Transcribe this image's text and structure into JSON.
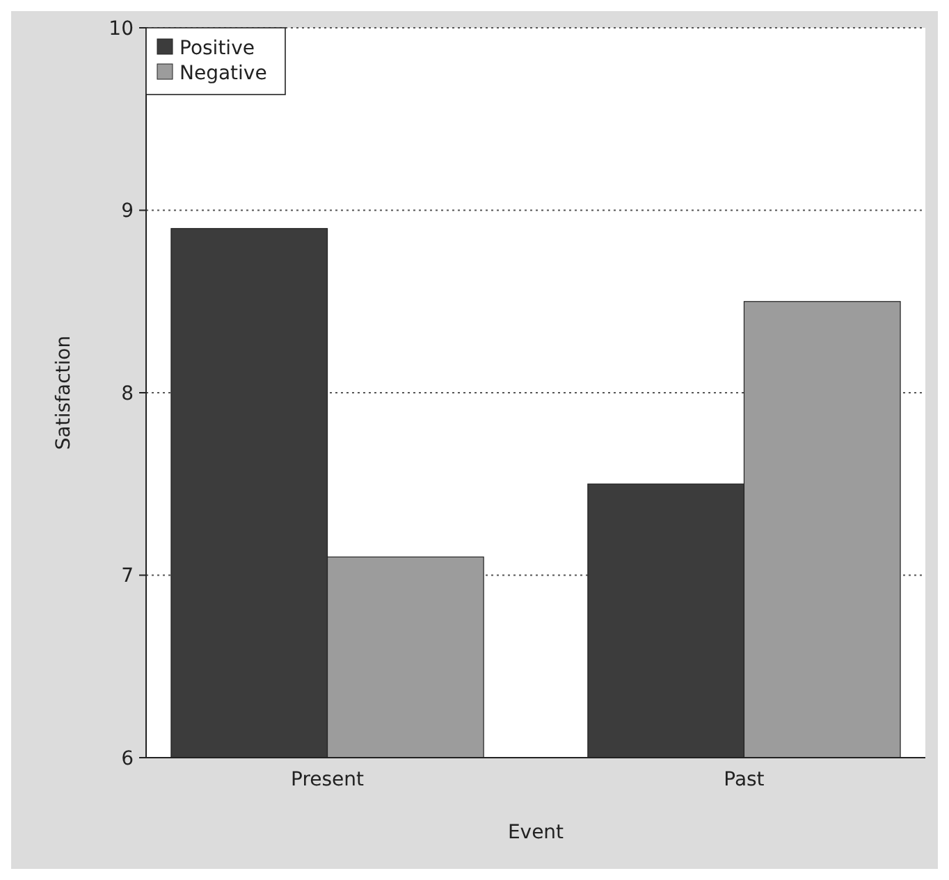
{
  "chart_data": {
    "type": "bar",
    "xlabel": "Event",
    "ylabel": "Satisfaction",
    "categories": [
      "Present",
      "Past"
    ],
    "series": [
      {
        "name": "Positive",
        "color": "#3c3c3c",
        "values": [
          8.9,
          7.5
        ]
      },
      {
        "name": "Negative",
        "color": "#9c9c9c",
        "values": [
          7.1,
          8.5
        ]
      }
    ],
    "ylim": [
      6,
      10
    ],
    "yticks": [
      6,
      7,
      8,
      9,
      10
    ],
    "grid": "y",
    "legend": "top left"
  }
}
